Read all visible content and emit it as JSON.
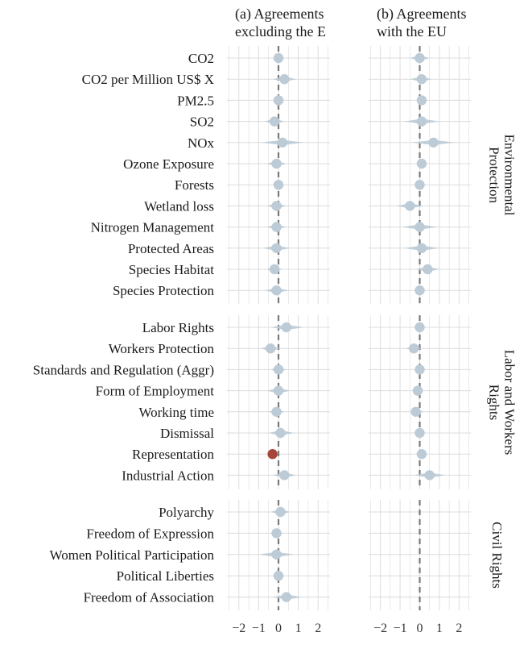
{
  "chart_data": {
    "type": "scatter",
    "panels": [
      {
        "title_line1": "(a) Agreements",
        "title_line2": "excluding the E"
      },
      {
        "title_line1": "(b) Agreements",
        "title_line2": "with the EU"
      }
    ],
    "x_ticks": [
      "−2",
      "−1",
      "0",
      "1",
      "2"
    ],
    "xlim": [
      -2.6,
      2.6
    ],
    "reference_line_x": 0,
    "colors": {
      "point": "#bccbd6",
      "highlight": "#a6453a",
      "refline": "#7a7a7a",
      "grid": "#dcdcdc"
    },
    "groups": [
      {
        "strip_line1": "Environmental",
        "strip_line2": "Protection",
        "rows": [
          {
            "label": "CO2",
            "a": {
              "est": 0.0,
              "lo": -0.3,
              "hi": 0.3
            },
            "b": {
              "est": 0.0,
              "lo": -0.5,
              "hi": 0.5
            }
          },
          {
            "label": "CO2 per Million US$ X",
            "a": {
              "est": 0.3,
              "lo": -0.3,
              "hi": 0.9
            },
            "b": {
              "est": 0.1,
              "lo": -0.5,
              "hi": 0.6
            }
          },
          {
            "label": "PM2.5",
            "a": {
              "est": 0.0,
              "lo": -0.3,
              "hi": 0.3
            },
            "b": {
              "est": 0.1,
              "lo": -0.2,
              "hi": 0.4
            }
          },
          {
            "label": "SO2",
            "a": {
              "est": -0.2,
              "lo": -0.7,
              "hi": 0.3
            },
            "b": {
              "est": 0.1,
              "lo": -0.8,
              "hi": 1.0
            }
          },
          {
            "label": "NOx",
            "a": {
              "est": 0.2,
              "lo": -0.9,
              "hi": 1.3
            },
            "b": {
              "est": 0.7,
              "lo": -0.4,
              "hi": 1.8
            }
          },
          {
            "label": "Ozone Exposure",
            "a": {
              "est": -0.1,
              "lo": -0.6,
              "hi": 0.4
            },
            "b": {
              "est": 0.1,
              "lo": -0.2,
              "hi": 0.4
            }
          },
          {
            "label": "Forests",
            "a": {
              "est": 0.0,
              "lo": -0.3,
              "hi": 0.3
            },
            "b": {
              "est": 0.0,
              "lo": -0.3,
              "hi": 0.3
            }
          },
          {
            "label": "Wetland loss",
            "a": {
              "est": -0.1,
              "lo": -0.6,
              "hi": 0.4
            },
            "b": {
              "est": -0.5,
              "lo": -1.2,
              "hi": 0.2
            }
          },
          {
            "label": "Nitrogen Management",
            "a": {
              "est": -0.1,
              "lo": -0.6,
              "hi": 0.4
            },
            "b": {
              "est": 0.0,
              "lo": -0.9,
              "hi": 0.9
            }
          },
          {
            "label": "Protected Areas",
            "a": {
              "est": -0.1,
              "lo": -0.8,
              "hi": 0.6
            },
            "b": {
              "est": 0.1,
              "lo": -0.8,
              "hi": 1.0
            }
          },
          {
            "label": "Species Habitat",
            "a": {
              "est": -0.2,
              "lo": -0.6,
              "hi": 0.2
            },
            "b": {
              "est": 0.4,
              "lo": -0.2,
              "hi": 1.0
            }
          },
          {
            "label": "Species Protection",
            "a": {
              "est": -0.1,
              "lo": -0.7,
              "hi": 0.5
            },
            "b": {
              "est": 0.0,
              "lo": -0.3,
              "hi": 0.3
            }
          }
        ]
      },
      {
        "strip_line1": "Labor and Workers",
        "strip_line2": "Rights",
        "rows": [
          {
            "label": "Labor Rights",
            "a": {
              "est": 0.4,
              "lo": -0.4,
              "hi": 1.3
            },
            "b": {
              "est": 0.0,
              "lo": -0.3,
              "hi": 0.3
            }
          },
          {
            "label": "Workers Protection",
            "a": {
              "est": -0.4,
              "lo": -0.9,
              "hi": 0.1
            },
            "b": {
              "est": -0.3,
              "lo": -0.7,
              "hi": 0.1
            }
          },
          {
            "label": "Standards and Regulation (Aggr)",
            "a": {
              "est": 0.0,
              "lo": -0.4,
              "hi": 0.4
            },
            "b": {
              "est": 0.0,
              "lo": -0.3,
              "hi": 0.3
            }
          },
          {
            "label": "Form of Employment",
            "a": {
              "est": 0.0,
              "lo": -0.6,
              "hi": 0.6
            },
            "b": {
              "est": -0.1,
              "lo": -0.4,
              "hi": 0.2
            }
          },
          {
            "label": "Working time",
            "a": {
              "est": -0.1,
              "lo": -0.5,
              "hi": 0.3
            },
            "b": {
              "est": -0.2,
              "lo": -0.5,
              "hi": 0.2
            }
          },
          {
            "label": "Dismissal",
            "a": {
              "est": 0.1,
              "lo": -0.5,
              "hi": 0.8
            },
            "b": {
              "est": 0.0,
              "lo": -0.3,
              "hi": 0.3
            }
          },
          {
            "label": "Representation",
            "a": {
              "est": -0.3,
              "lo": -0.45,
              "hi": -0.15
            },
            "b": {
              "est": 0.1,
              "lo": -0.2,
              "hi": 0.4
            },
            "highlight": "a"
          },
          {
            "label": "Industrial Action",
            "a": {
              "est": 0.3,
              "lo": -0.3,
              "hi": 0.9
            },
            "b": {
              "est": 0.5,
              "lo": -0.3,
              "hi": 1.3
            }
          }
        ]
      },
      {
        "strip_line1": "Civil Rights",
        "strip_line2": "",
        "rows": [
          {
            "label": "Polyarchy",
            "a": {
              "est": 0.1,
              "lo": -0.4,
              "hi": 0.6
            },
            "b": null
          },
          {
            "label": "Freedom of Expression",
            "a": {
              "est": -0.1,
              "lo": -0.4,
              "hi": 0.2
            },
            "b": null
          },
          {
            "label": "Women Political Participation",
            "a": {
              "est": -0.1,
              "lo": -1.0,
              "hi": 0.8
            },
            "b": null
          },
          {
            "label": "Political Liberties",
            "a": {
              "est": 0.0,
              "lo": -0.3,
              "hi": 0.3
            },
            "b": null
          },
          {
            "label": "Freedom of Association",
            "a": {
              "est": 0.4,
              "lo": -0.3,
              "hi": 1.2
            },
            "b": null
          }
        ]
      }
    ]
  }
}
